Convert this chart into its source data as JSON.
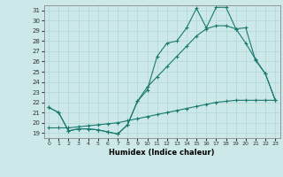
{
  "xlabel": "Humidex (Indice chaleur)",
  "bg_color": "#cce8e8",
  "grid_color": "#b0d8d8",
  "line_color": "#1a7a6e",
  "xlim": [
    -0.5,
    23.5
  ],
  "ylim": [
    18.5,
    31.5
  ],
  "xticks": [
    0,
    1,
    2,
    3,
    4,
    5,
    6,
    7,
    8,
    9,
    10,
    11,
    12,
    13,
    14,
    15,
    16,
    17,
    18,
    19,
    20,
    21,
    22,
    23
  ],
  "yticks": [
    19,
    20,
    21,
    22,
    23,
    24,
    25,
    26,
    27,
    28,
    29,
    30,
    31
  ],
  "line1_x": [
    0,
    1,
    2,
    3,
    4,
    5,
    6,
    7,
    8,
    9,
    10,
    11,
    12,
    13,
    14,
    15,
    16,
    17,
    18,
    19,
    20,
    21,
    22,
    23
  ],
  "line1_y": [
    21.5,
    21.0,
    19.2,
    19.4,
    19.4,
    19.3,
    19.1,
    18.9,
    19.8,
    22.1,
    23.2,
    26.5,
    27.8,
    28.0,
    29.3,
    31.2,
    29.3,
    31.3,
    31.3,
    29.2,
    29.3,
    26.1,
    24.8,
    22.2
  ],
  "line2_x": [
    0,
    1,
    2,
    3,
    4,
    5,
    6,
    7,
    8,
    9,
    10,
    11,
    12,
    13,
    14,
    15,
    16,
    17,
    18,
    19,
    20,
    21,
    22,
    23
  ],
  "line2_y": [
    21.5,
    21.0,
    19.2,
    19.4,
    19.4,
    19.3,
    19.1,
    18.9,
    19.8,
    22.1,
    23.5,
    24.5,
    25.5,
    26.5,
    27.5,
    28.5,
    29.2,
    29.5,
    29.5,
    29.2,
    27.8,
    26.2,
    24.8,
    22.2
  ],
  "line3_x": [
    0,
    1,
    2,
    3,
    4,
    5,
    6,
    7,
    8,
    9,
    10,
    11,
    12,
    13,
    14,
    15,
    16,
    17,
    18,
    19,
    20,
    21,
    22,
    23
  ],
  "line3_y": [
    19.5,
    19.5,
    19.5,
    19.6,
    19.7,
    19.8,
    19.9,
    20.0,
    20.2,
    20.4,
    20.6,
    20.8,
    21.0,
    21.2,
    21.4,
    21.6,
    21.8,
    22.0,
    22.1,
    22.2,
    22.2,
    22.2,
    22.2,
    22.2
  ]
}
